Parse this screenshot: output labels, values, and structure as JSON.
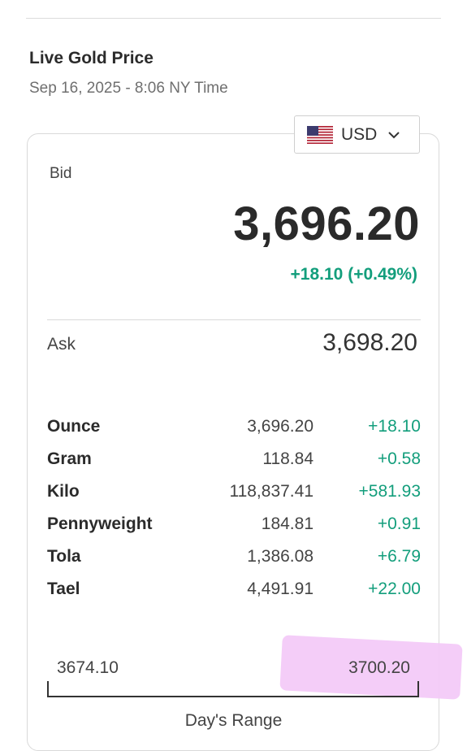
{
  "header": {
    "title": "Live Gold Price",
    "subtitle": "Sep 16, 2025 - 8:06 NY Time"
  },
  "currency": {
    "selected": "USD",
    "flag_icon": "us-flag-icon",
    "chevron_icon": "chevron-down-icon"
  },
  "bid": {
    "label": "Bid",
    "value": "3,696.20",
    "change": "+18.10 (+0.49%)"
  },
  "ask": {
    "label": "Ask",
    "value": "3,698.20"
  },
  "units": [
    {
      "name": "Ounce",
      "price": "3,696.20",
      "change": "+18.10"
    },
    {
      "name": "Gram",
      "price": "118.84",
      "change": "+0.58"
    },
    {
      "name": "Kilo",
      "price": "118,837.41",
      "change": "+581.93"
    },
    {
      "name": "Pennyweight",
      "price": "184.81",
      "change": "+0.91"
    },
    {
      "name": "Tola",
      "price": "1,386.08",
      "change": "+6.79"
    },
    {
      "name": "Tael",
      "price": "4,491.91",
      "change": "+22.00"
    }
  ],
  "day_range": {
    "low": "3674.10",
    "high": "3700.20",
    "label": "Day's Range"
  },
  "colors": {
    "positive": "#139e7c",
    "highlight": "#f3c8f7"
  }
}
